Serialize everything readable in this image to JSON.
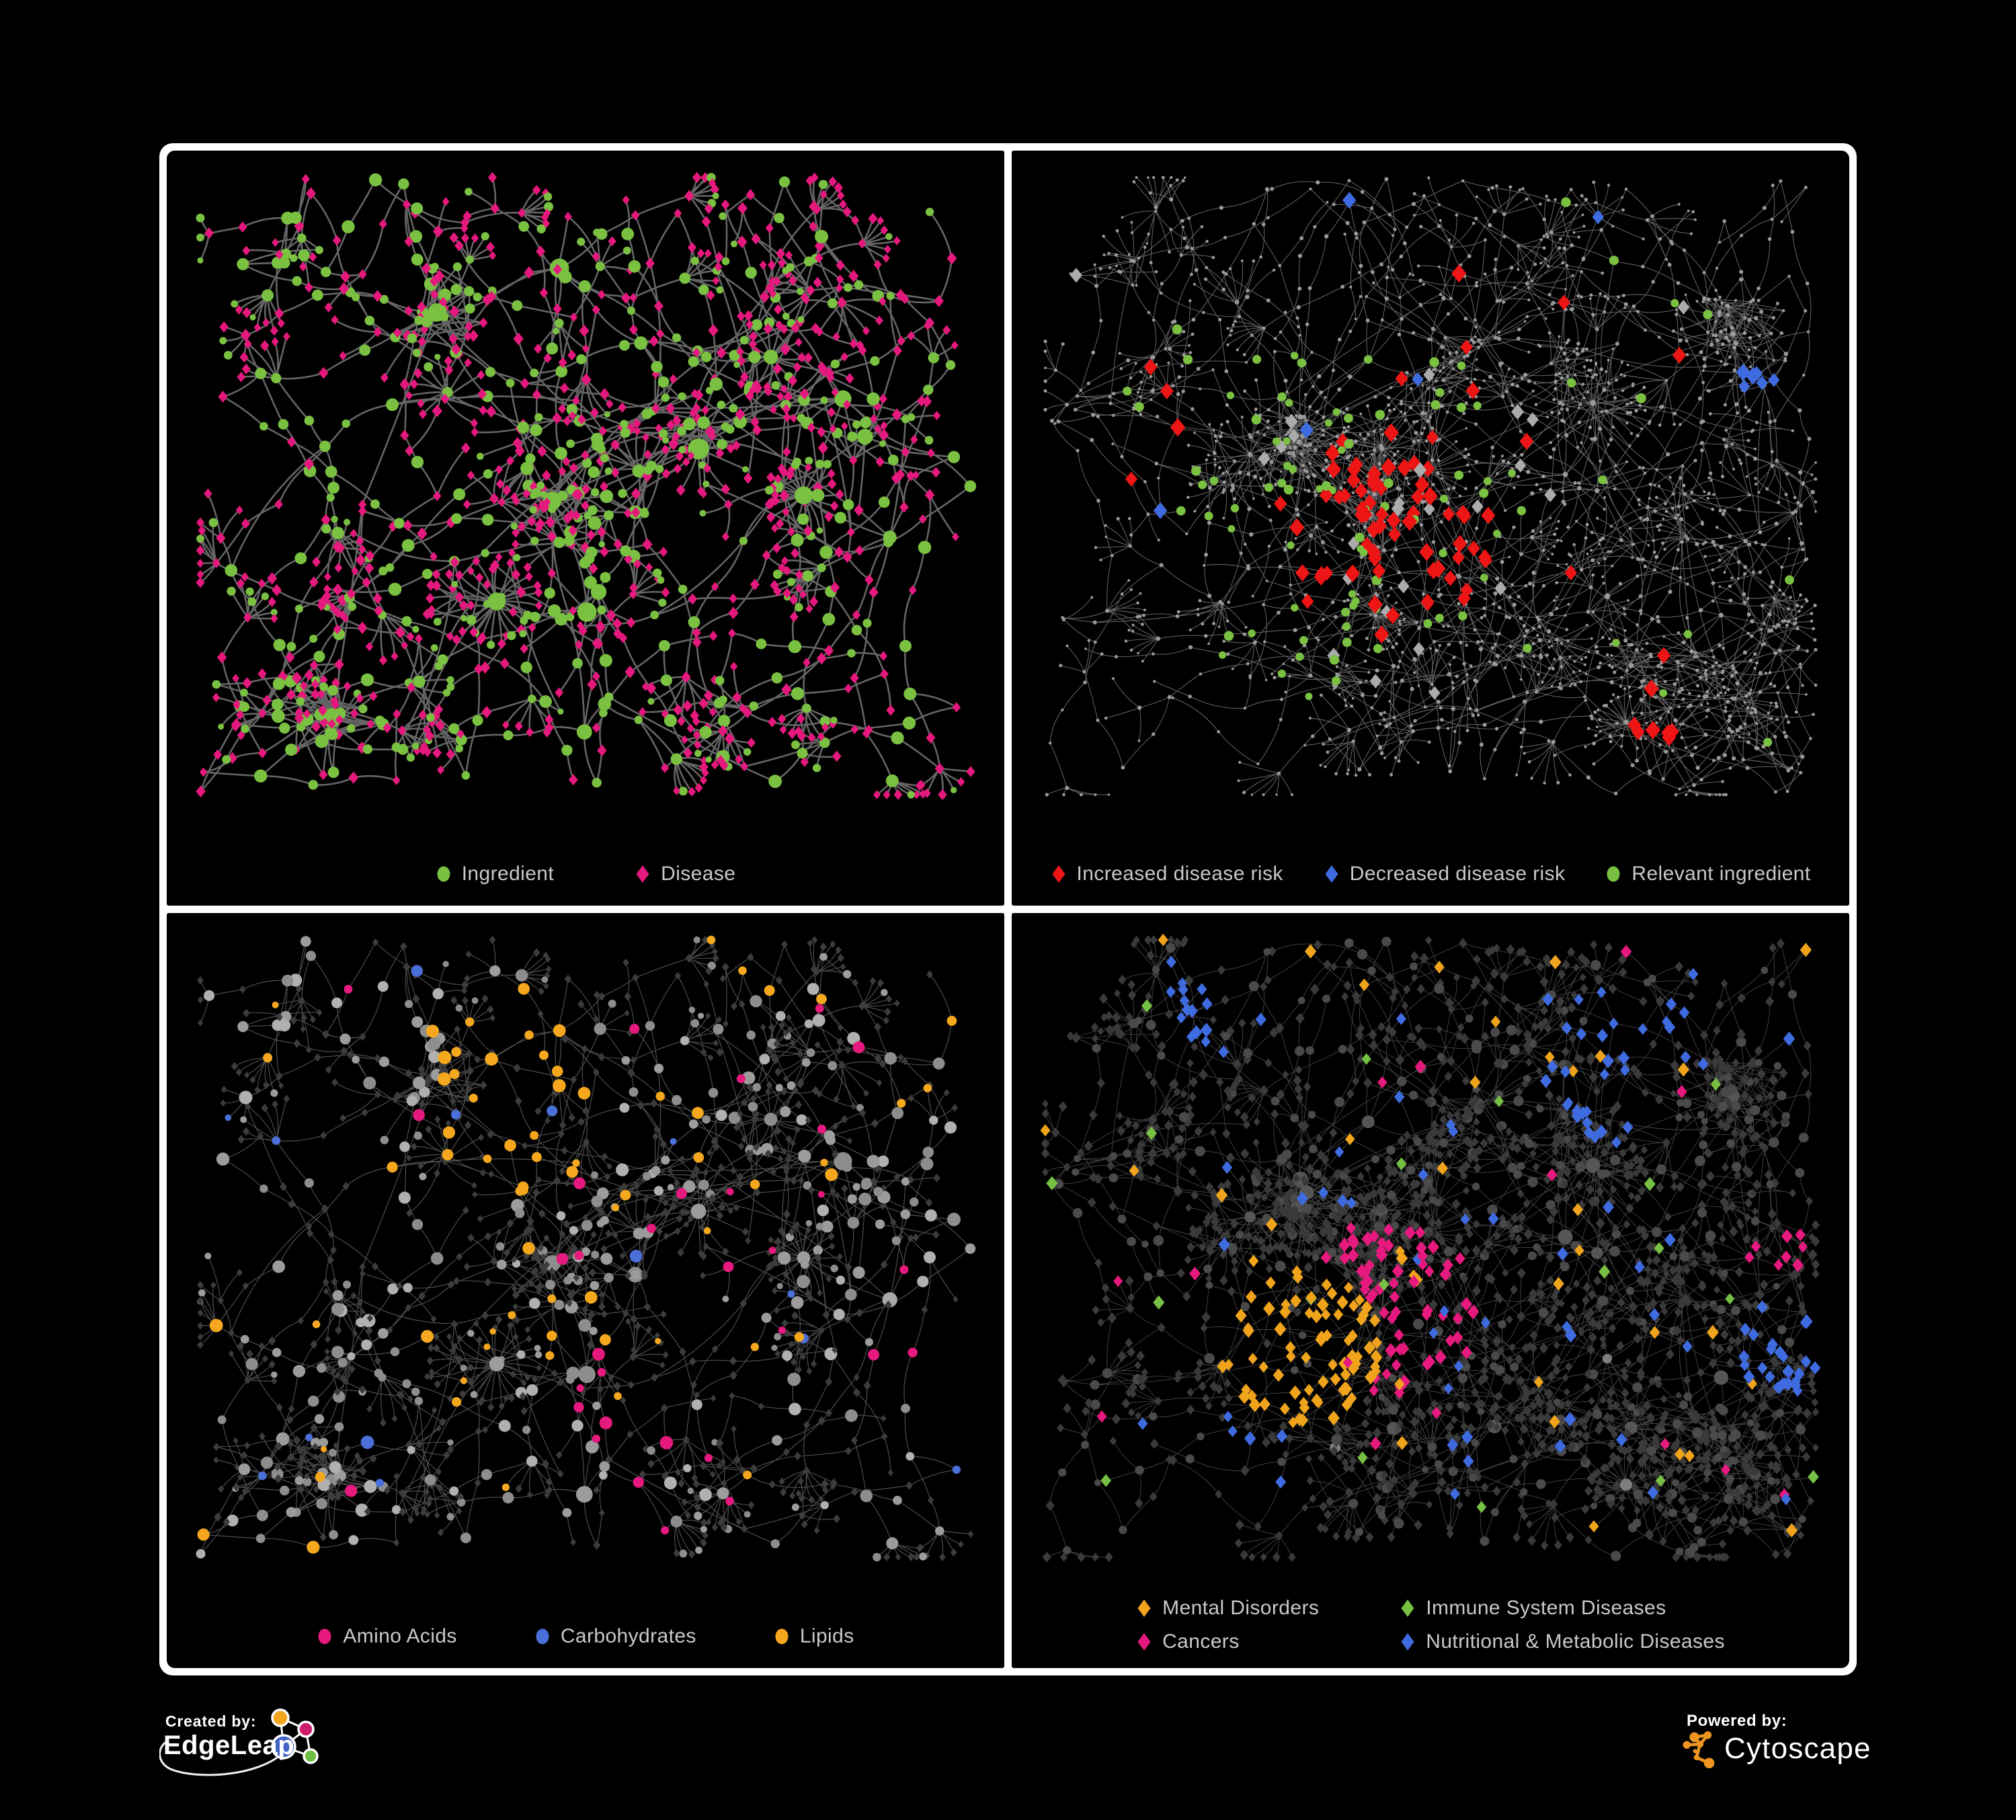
{
  "page": {
    "background": "#000000",
    "frame_border": "#ffffff",
    "legend_text_color": "#c9c9c9"
  },
  "branding": {
    "created_by": "Created by:",
    "edgeleap": "EdgeLeap",
    "powered_by": "Powered by:",
    "cytoscape": "Cytoscape",
    "edgeleap_node_colors": {
      "orange": "#f2a71e",
      "pink": "#cf1d6e",
      "blue": "#4263c4",
      "green": "#6cbf3f"
    },
    "cytoscape_orange": "#ee9421"
  },
  "panels": [
    {
      "name": "ingredient-disease",
      "legend_layout": "row",
      "legend_gap": 120,
      "legend": [
        {
          "label": "Ingredient",
          "color": "#7ac142",
          "shape": "circle"
        },
        {
          "label": "Disease",
          "color": "#e5197d",
          "shape": "diamond"
        }
      ],
      "network": {
        "layoutSeed": 1234,
        "styleSeed": 5,
        "hubs": 11,
        "cores": 3,
        "coreSize": 26,
        "branchMin": 4,
        "branchVar": 3,
        "fanP": 0.6,
        "bursts": 4,
        "cross": 30,
        "edge": {
          "color": "#6e6e6e",
          "width": 2.6,
          "opacity": 0.92
        },
        "roles": {
          "hub": [
            {
              "shape": "circle",
              "color": "#7ac142",
              "size": [
                10,
                16
              ],
              "p": 1
            }
          ],
          "mid": [
            {
              "shape": "circle",
              "color": "#7ac142",
              "size": [
                6,
                10
              ],
              "p": 0.46
            },
            {
              "shape": "diamond",
              "color": "#e5197d",
              "size": [
                7,
                9.5
              ],
              "p": 0.54
            }
          ],
          "leaf": [
            {
              "shape": "circle",
              "color": "#7ac142",
              "size": [
                4.5,
                7
              ],
              "p": 0.24
            },
            {
              "shape": "diamond",
              "color": "#e5197d",
              "size": [
                6.5,
                8.5
              ],
              "p": 0.76
            }
          ]
        },
        "highlights": []
      }
    },
    {
      "name": "disease-risk",
      "legend_layout": "row",
      "legend_gap": 60,
      "legend": [
        {
          "label": "Increased disease risk",
          "color": "#ed1515",
          "shape": "diamond"
        },
        {
          "label": "Decreased disease risk",
          "color": "#3f6be0",
          "shape": "diamond"
        },
        {
          "label": "Relevant ingredient",
          "color": "#7ac142",
          "shape": "circle"
        }
      ],
      "network": {
        "layoutSeed": 987,
        "styleSeed": 9,
        "hubs": 13,
        "cores": 3,
        "coreSize": 40,
        "branchMin": 4,
        "branchVar": 4,
        "fanP": 0.55,
        "bursts": 6,
        "cross": 50,
        "edge": {
          "color": "#8b8b8b",
          "width": 1.05,
          "opacity": 0.72
        },
        "roles": {
          "hub": [
            {
              "shape": "circle",
              "color": "#9a9a9a",
              "size": [
                3,
                4.5
              ],
              "p": 1
            }
          ],
          "mid": [
            {
              "shape": "circle",
              "color": "#9a9a9a",
              "size": [
                2.2,
                3.2
              ],
              "p": 1
            }
          ],
          "leaf": [
            {
              "shape": "circle",
              "color": "#9a9a9a",
              "size": [
                1.8,
                2.6
              ],
              "p": 1
            }
          ]
        },
        "highlights": [
          {
            "shape": "diamond",
            "color": "#ed1515",
            "size": [
              11,
              14
            ],
            "applyTo": "any",
            "roles": [
              "mid",
              "hub"
            ],
            "regions": [
              {
                "fx": 0.44,
                "fy": 0.58,
                "fr": 0.18,
                "p": 0.34
              },
              {
                "fx": 0.12,
                "fy": 0.47,
                "fr": 0.07,
                "p": 0.35
              },
              {
                "fx": 0.79,
                "fy": 0.87,
                "fr": 0.045,
                "p": 0.7
              }
            ],
            "globalP": 0.006
          },
          {
            "shape": "diamond",
            "color": "#3f6be0",
            "size": [
              10,
              13
            ],
            "applyTo": "any",
            "roles": [
              "mid",
              "hub"
            ],
            "regions": [
              {
                "fx": 0.16,
                "fy": 0.6,
                "fr": 0.07,
                "p": 0.55
              },
              {
                "fx": 0.93,
                "fy": 0.33,
                "fr": 0.035,
                "p": 0.9
              }
            ],
            "globalP": 0.004
          },
          {
            "shape": "diamond",
            "color": "#ababab",
            "size": [
              10,
              12
            ],
            "applyTo": "any",
            "roles": [
              "mid",
              "hub"
            ],
            "regions": [
              {
                "fx": 0.45,
                "fy": 0.55,
                "fr": 0.3,
                "p": 0.05
              }
            ],
            "globalP": 0.008
          },
          {
            "shape": "circle",
            "color": "#7ac142",
            "size": [
              5.5,
              7.5
            ],
            "applyTo": "any",
            "roles": [
              "mid",
              "leaf",
              "hub"
            ],
            "regions": [
              {
                "fx": 0.39,
                "fy": 0.55,
                "fr": 0.3,
                "p": 0.12
              }
            ],
            "globalP": 0.01
          }
        ]
      }
    },
    {
      "name": "macronutrients",
      "legend_layout": "row",
      "legend_gap": 115,
      "legend": [
        {
          "label": "Amino Acids",
          "color": "#e6197e",
          "shape": "circle"
        },
        {
          "label": "Carbohydrates",
          "color": "#4a6fd9",
          "shape": "circle"
        },
        {
          "label": "Lipids",
          "color": "#f5a81e",
          "shape": "circle"
        }
      ],
      "network": {
        "layoutSeed": 1234,
        "styleSeed": 13,
        "hubs": 11,
        "cores": 3,
        "coreSize": 26,
        "branchMin": 4,
        "branchVar": 3,
        "fanP": 0.6,
        "bursts": 4,
        "cross": 30,
        "edge": {
          "color": "#9a9a9a",
          "width": 1.2,
          "opacity": 0.5
        },
        "roles": {
          "hub": [
            {
              "shape": "circle",
              "colors": [
                "#9c9c9c",
                "#8d8d8d",
                "#a8a8a8"
              ],
              "size": [
                9,
                15
              ],
              "p": 1
            }
          ],
          "mid": [
            {
              "shape": "circle",
              "colors": [
                "#9c9c9c",
                "#8d8d8d",
                "#b0b0b0"
              ],
              "size": [
                6,
                10
              ],
              "p": 0.52
            },
            {
              "shape": "diamond",
              "color": "#3c3c3c",
              "size": [
                5.5,
                7
              ],
              "p": 0.48
            }
          ],
          "leaf": [
            {
              "shape": "diamond",
              "color": "#3c3c3c",
              "size": [
                5,
                6.5
              ],
              "p": 0.82
            },
            {
              "shape": "circle",
              "colors": [
                "#9c9c9c",
                "#8d8d8d"
              ],
              "size": [
                4.5,
                6.5
              ],
              "p": 0.18
            }
          ]
        },
        "highlights": [
          {
            "color": "#f5a81e",
            "applyTo": "circle",
            "regions": [
              {
                "fx": 0.41,
                "fy": 0.26,
                "fr": 0.15,
                "p": 0.75
              },
              {
                "fx": 0.4,
                "fy": 0.6,
                "fr": 0.1,
                "p": 0.45
              }
            ],
            "globalP": 0.1
          },
          {
            "color": "#4a6fd9",
            "applyTo": "circle",
            "regions": [
              {
                "fx": 0.4,
                "fy": 0.24,
                "fr": 0.1,
                "p": 0.3
              }
            ],
            "globalP": 0.035
          },
          {
            "color": "#e6197e",
            "applyTo": "circle",
            "regions": [
              {
                "fx": 0.6,
                "fy": 0.75,
                "fr": 0.15,
                "p": 0.3
              }
            ],
            "globalP": 0.08
          }
        ]
      }
    },
    {
      "name": "disease-classes",
      "legend_layout": "grid2",
      "legend_gap": 120,
      "legend": [
        {
          "label": "Mental Disorders",
          "color": "#f0a41c",
          "shape": "diamond"
        },
        {
          "label": "Immune System Diseases",
          "color": "#76c043",
          "shape": "diamond"
        },
        {
          "label": "Cancers",
          "color": "#e6197e",
          "shape": "diamond"
        },
        {
          "label": "Nutritional & Metabolic Diseases",
          "color": "#3f6be0",
          "shape": "diamond"
        }
      ],
      "network": {
        "layoutSeed": 987,
        "styleSeed": 21,
        "hubs": 13,
        "cores": 3,
        "coreSize": 40,
        "branchMin": 4,
        "branchVar": 4,
        "fanP": 0.55,
        "bursts": 6,
        "cross": 50,
        "edge": {
          "color": "#9a9a9a",
          "width": 0.9,
          "opacity": 0.45
        },
        "roles": {
          "hub": [
            {
              "shape": "circle",
              "color": "#565656",
              "size": [
                8,
                12
              ],
              "p": 0.8
            },
            {
              "shape": "circle",
              "color": "#7d7d7d",
              "size": [
                7,
                10
              ],
              "p": 0.2
            }
          ],
          "mid": [
            {
              "shape": "diamond",
              "color": "#3a3a3a",
              "size": [
                6.5,
                8.5
              ],
              "p": 0.66
            },
            {
              "shape": "circle",
              "color": "#4a4a4a",
              "size": [
                5,
                8
              ],
              "p": 0.34
            }
          ],
          "leaf": [
            {
              "shape": "diamond",
              "color": "#3a3a3a",
              "size": [
                6,
                8
              ],
              "p": 1
            }
          ]
        },
        "highlights": [
          {
            "shape": "diamond",
            "color": "#f0a41c",
            "size": [
              8.5,
              11
            ],
            "applyTo": "any",
            "regions": [
              {
                "fx": 0.33,
                "fy": 0.66,
                "fr": 0.13,
                "p": 0.85
              }
            ],
            "globalP": 0.015
          },
          {
            "shape": "diamond",
            "color": "#e6197e",
            "size": [
              8.5,
              11
            ],
            "applyTo": "any",
            "regions": [
              {
                "fx": 0.45,
                "fy": 0.6,
                "fr": 0.14,
                "p": 0.5
              },
              {
                "fx": 0.95,
                "fy": 0.5,
                "fr": 0.05,
                "p": 0.7
              }
            ],
            "globalP": 0.01
          },
          {
            "shape": "diamond",
            "color": "#3f6be0",
            "size": [
              8.5,
              11
            ],
            "applyTo": "any",
            "regions": [
              {
                "fx": 0.95,
                "fy": 0.66,
                "fr": 0.07,
                "p": 0.7
              },
              {
                "fx": 0.75,
                "fy": 0.2,
                "fr": 0.13,
                "p": 0.4
              },
              {
                "fx": 0.27,
                "fy": 0.85,
                "fr": 0.07,
                "p": 0.45
              },
              {
                "fx": 0.18,
                "fy": 0.11,
                "fr": 0.06,
                "p": 0.4
              }
            ],
            "globalP": 0.03
          },
          {
            "shape": "diamond",
            "color": "#76c043",
            "size": [
              8.5,
              10.5
            ],
            "applyTo": "any",
            "regions": [],
            "globalP": 0.01
          }
        ]
      }
    }
  ]
}
